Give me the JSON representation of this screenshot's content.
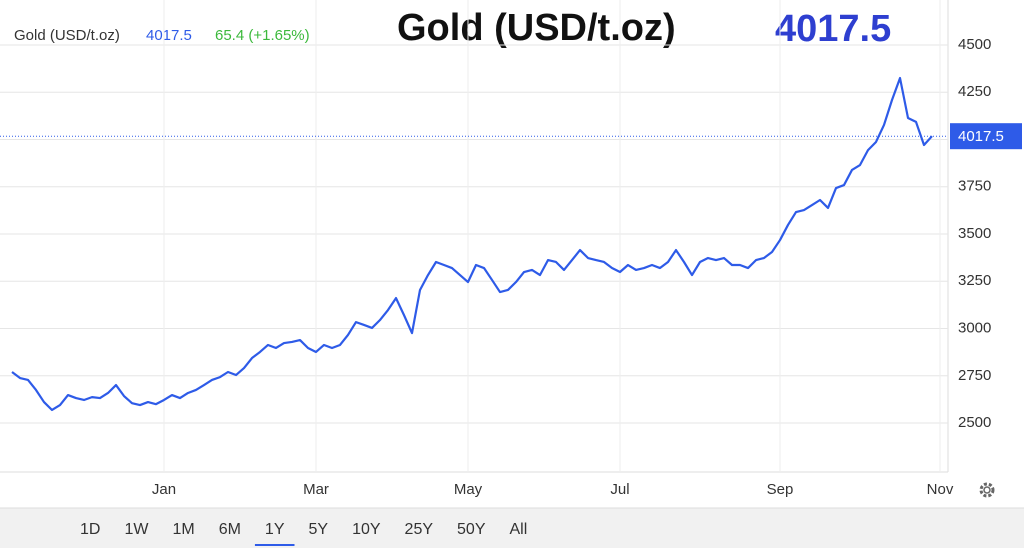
{
  "chart_data": {
    "type": "line",
    "title": "Gold (USD/t.oz)",
    "last_price": 4017.5,
    "change_label": "65.4 (+1.65%)",
    "categories": [
      null,
      null,
      null,
      null,
      null,
      null,
      null,
      null,
      null,
      null,
      null,
      null,
      null,
      null,
      null,
      null,
      null,
      null,
      null,
      "Jan",
      null,
      null,
      null,
      null,
      null,
      null,
      null,
      null,
      null,
      null,
      null,
      null,
      null,
      null,
      null,
      null,
      null,
      null,
      "Mar",
      null,
      null,
      null,
      null,
      null,
      null,
      null,
      null,
      null,
      null,
      null,
      null,
      null,
      null,
      null,
      null,
      null,
      null,
      "May",
      null,
      null,
      null,
      null,
      null,
      null,
      null,
      null,
      null,
      null,
      null,
      null,
      null,
      null,
      null,
      null,
      null,
      null,
      "Jul",
      null,
      null,
      null,
      null,
      null,
      null,
      null,
      null,
      null,
      null,
      null,
      null,
      null,
      null,
      null,
      null,
      null,
      null,
      null,
      "Sep",
      null,
      null,
      null,
      null,
      null,
      null,
      null,
      null,
      null,
      null,
      null,
      null,
      null,
      null,
      null,
      null,
      null,
      null,
      null,
      "Nov"
    ],
    "series": [
      {
        "name": "Gold (USD/t.oz)",
        "color": "#2e5be8",
        "values": [
          2770,
          2738,
          2728,
          2675,
          2611,
          2569,
          2595,
          2648,
          2632,
          2622,
          2637,
          2632,
          2659,
          2701,
          2643,
          2605,
          2595,
          2611,
          2600,
          2622,
          2648,
          2632,
          2659,
          2675,
          2701,
          2728,
          2743,
          2770,
          2754,
          2791,
          2844,
          2876,
          2913,
          2897,
          2923,
          2929,
          2939,
          2897,
          2876,
          2913,
          2897,
          2913,
          2966,
          3034,
          3019,
          3003,
          3045,
          3098,
          3161,
          3071,
          2976,
          3204,
          3283,
          3352,
          3336,
          3320,
          3283,
          3246,
          3336,
          3320,
          3257,
          3193,
          3204,
          3246,
          3299,
          3310,
          3283,
          3362,
          3352,
          3310,
          3362,
          3415,
          3373,
          3362,
          3352,
          3320,
          3299,
          3336,
          3310,
          3320,
          3336,
          3320,
          3352,
          3415,
          3352,
          3283,
          3352,
          3373,
          3362,
          3373,
          3336,
          3336,
          3320,
          3362,
          3373,
          3405,
          3468,
          3548,
          3616,
          3627,
          3653,
          3680,
          3638,
          3743,
          3759,
          3839,
          3865,
          3944,
          3987,
          4077,
          4209,
          4325,
          4114,
          4093,
          3971,
          4017.5,
          null
        ]
      }
    ],
    "ylim": [
      2241,
      4738
    ],
    "yticks": [
      2500,
      2750,
      3000,
      3250,
      3500,
      3750,
      4000,
      4250,
      4500
    ],
    "grid": true,
    "range_buttons": [
      "1D",
      "1W",
      "1M",
      "6M",
      "1Y",
      "5Y",
      "10Y",
      "25Y",
      "50Y",
      "All"
    ],
    "active_range": "1Y"
  }
}
